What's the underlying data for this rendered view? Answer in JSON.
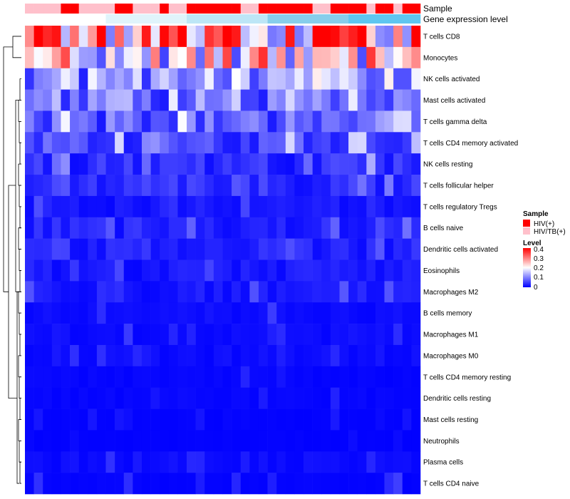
{
  "chart_data": {
    "type": "heatmap",
    "title": "",
    "row_labels": [
      "T cells CD8",
      "Monocytes",
      "NK cells activated",
      "Mast cells activated",
      "T cells gamma delta",
      "T cells CD4 memory activated",
      "NK cells resting",
      "T cells follicular helper",
      "T cells regulatory  Tregs",
      "B cells naive",
      "Dendritic cells activated",
      "Eosinophils",
      "Macrophages M2",
      "B cells memory",
      "Macrophages M1",
      "Macrophages M0",
      "T cells CD4 memory resting",
      "Dendritic cells resting",
      "Mast cells resting",
      "Neutrophils",
      "Plasma cells",
      "T cells CD4 naive"
    ],
    "n_samples": 44,
    "sample_groups": [
      "HIV/TB(+)",
      "HIV/TB(+)",
      "HIV/TB(+)",
      "HIV/TB(+)",
      "HIV(+)",
      "HIV(+)",
      "HIV/TB(+)",
      "HIV/TB(+)",
      "HIV/TB(+)",
      "HIV/TB(+)",
      "HIV(+)",
      "HIV(+)",
      "HIV/TB(+)",
      "HIV/TB(+)",
      "HIV/TB(+)",
      "HIV(+)",
      "HIV/TB(+)",
      "HIV/TB(+)",
      "HIV(+)",
      "HIV(+)",
      "HIV(+)",
      "HIV(+)",
      "HIV(+)",
      "HIV(+)",
      "HIV/TB(+)",
      "HIV/TB(+)",
      "HIV(+)",
      "HIV(+)",
      "HIV(+)",
      "HIV(+)",
      "HIV(+)",
      "HIV(+)",
      "HIV/TB(+)",
      "HIV/TB(+)",
      "HIV(+)",
      "HIV(+)",
      "HIV(+)",
      "HIV(+)",
      "HIV/TB(+)",
      "HIV(+)",
      "HIV(+)",
      "HIV/TB(+)",
      "HIV(+)",
      "HIV(+)"
    ],
    "row_means": [
      0.33,
      0.21,
      0.13,
      0.1,
      0.08,
      0.06,
      0.04,
      0.04,
      0.02,
      0.03,
      0.03,
      0.02,
      0.02,
      0.01,
      0.01,
      0.01,
      0.005,
      0.005,
      0.003,
      0.002,
      0.01,
      0.003
    ],
    "row_max": [
      0.4,
      0.38,
      0.22,
      0.22,
      0.2,
      0.18,
      0.16,
      0.1,
      0.08,
      0.09,
      0.07,
      0.06,
      0.07,
      0.06,
      0.05,
      0.05,
      0.03,
      0.03,
      0.02,
      0.01,
      0.04,
      0.05
    ],
    "scale_min": 0,
    "scale_max": 0.4,
    "color_low": "#0000ff",
    "color_mid": "#ffffff",
    "color_high": "#ff0000",
    "legend_sample": {
      "title": "Sample",
      "entries": [
        {
          "label": "HIV(+)",
          "color": "#ff0000"
        },
        {
          "label": "HIV/TB(+)",
          "color": "#ffc0cb"
        }
      ]
    },
    "legend_level": {
      "title": "Level",
      "ticks": [
        "0.4",
        "0.3",
        "0.2",
        "0.1",
        "0"
      ]
    },
    "annotation_rows": [
      {
        "label": "Sample"
      },
      {
        "label": "Gene expression level"
      }
    ],
    "gene_bar_colors": [
      "#ffffff",
      "#e0f4fb",
      "#bde6f6",
      "#87ceeb",
      "#5ec6f0"
    ]
  }
}
